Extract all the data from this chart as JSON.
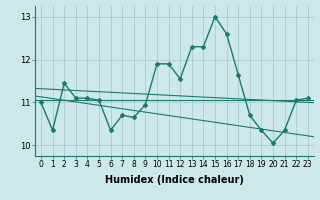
{
  "xlabel": "Humidex (Indice chaleur)",
  "background_color": "#cce8e8",
  "grid_color": "#aacccc",
  "line_color": "#1a7a6e",
  "x_values": [
    0,
    1,
    2,
    3,
    4,
    5,
    6,
    7,
    8,
    9,
    10,
    11,
    12,
    13,
    14,
    15,
    16,
    17,
    18,
    19,
    20,
    21,
    22,
    23
  ],
  "y_values": [
    11.0,
    10.35,
    11.45,
    11.1,
    11.1,
    11.05,
    10.35,
    10.7,
    10.65,
    10.95,
    11.9,
    11.9,
    11.55,
    12.3,
    12.3,
    13.0,
    12.6,
    11.65,
    10.7,
    10.35,
    10.05,
    10.35,
    11.05,
    11.1
  ],
  "ylim": [
    9.75,
    13.25
  ],
  "xlim": [
    -0.5,
    23.5
  ],
  "yticks": [
    10,
    11,
    12,
    13
  ],
  "trend1_start_y": 11.32,
  "trend1_end_y": 11.0,
  "hline_y": 11.05,
  "trend2_start_y": 11.15,
  "trend2_end_y": 10.2,
  "tick_fontsize": 5.5,
  "label_fontsize": 7
}
